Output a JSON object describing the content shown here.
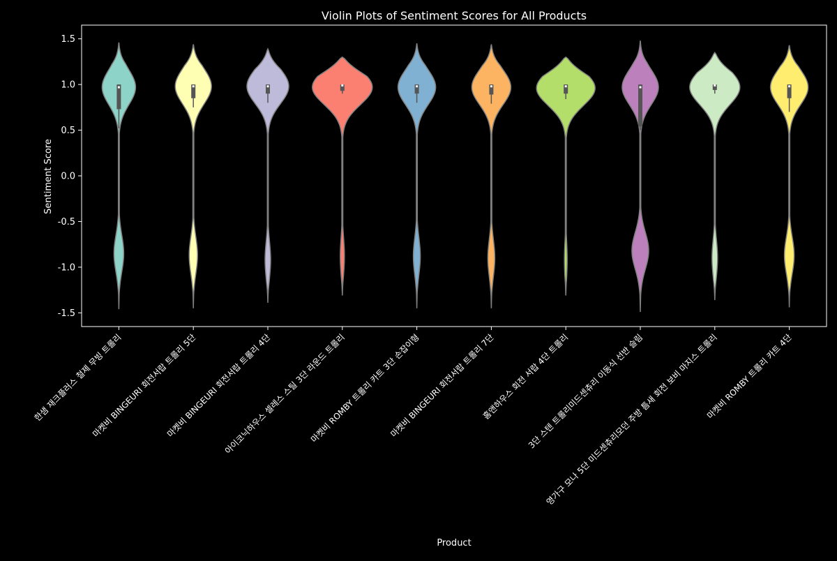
{
  "chart_data": {
    "type": "violin",
    "title": "Violin Plots of Sentiment Scores for All Products",
    "xlabel": "Product",
    "ylabel": "Sentiment Score",
    "ylim": [
      -1.65,
      1.65
    ],
    "yticks": [
      1.5,
      1.0,
      0.5,
      0.0,
      -0.5,
      -1.0,
      -1.5
    ],
    "ytick_labels": [
      "1.5",
      "1.0",
      "0.5",
      "0.0",
      "-0.5",
      "-1.0",
      "-1.5"
    ],
    "grid": false,
    "background": "#000000",
    "foreground": "#ffffff",
    "violin_edge_color": "#808080",
    "box_color": "#555555",
    "median_color": "#ffffff",
    "categories": [
      "한샘 재크플러스 철제 무빙 트롤리",
      "마켓비 BINGEURI 회전서랍 트롤리 5단",
      "마켓비 BINGEURI 회전서랍 트롤리 4단",
      "아이코닉하우스 셀레스 스틸 3단 라운드 트롤리",
      "마켓비 ROMBY 트롤리 카트 3단 손잡이형",
      "마켓비 BINGEURI 회전서랍 트롤리 7단",
      "홈앤하우스 회전 서랍 4단 트롤리",
      "3단 스텐 트롤리미드센츄리 이동식 선반 슬림",
      "영가구 모나 5단 미드센츄리모던 주방 틈새 회전 보비 마지스 트롤리",
      "마켓비 ROMBY 트롤리 카트 4단"
    ],
    "series": [
      {
        "color": "#8dd3c7",
        "min": -1.46,
        "max": 1.46,
        "q1": 0.73,
        "median": 0.97,
        "q3": 1.0,
        "whisker_low": 0.52,
        "whisker_high": 1.0,
        "upper_halfwidth": 24,
        "upper_center": 0.97,
        "lower_halfwidth": 7,
        "lower_center": -0.85
      },
      {
        "color": "#ffffb3",
        "min": -1.45,
        "max": 1.44,
        "q1": 0.85,
        "median": 0.98,
        "q3": 1.0,
        "whisker_low": 0.75,
        "whisker_high": 1.0,
        "upper_halfwidth": 26,
        "upper_center": 0.98,
        "lower_halfwidth": 6,
        "lower_center": -0.87
      },
      {
        "color": "#bebada",
        "min": -1.39,
        "max": 1.39,
        "q1": 0.9,
        "median": 0.98,
        "q3": 1.0,
        "whisker_low": 0.8,
        "whisker_high": 1.0,
        "upper_halfwidth": 30,
        "upper_center": 0.98,
        "lower_halfwidth": 4,
        "lower_center": -0.92
      },
      {
        "color": "#fb8072",
        "min": -1.31,
        "max": 1.3,
        "q1": 0.93,
        "median": 0.99,
        "q3": 1.0,
        "whisker_low": 0.9,
        "whisker_high": 1.0,
        "upper_halfwidth": 43,
        "upper_center": 0.97,
        "lower_halfwidth": 3,
        "lower_center": -0.88
      },
      {
        "color": "#80b1d3",
        "min": -1.45,
        "max": 1.45,
        "q1": 0.9,
        "median": 0.98,
        "q3": 1.0,
        "whisker_low": 0.8,
        "whisker_high": 1.0,
        "upper_halfwidth": 27,
        "upper_center": 0.97,
        "lower_halfwidth": 5,
        "lower_center": -0.88
      },
      {
        "color": "#fdb462",
        "min": -1.45,
        "max": 1.44,
        "q1": 0.89,
        "median": 0.98,
        "q3": 1.0,
        "whisker_low": 0.79,
        "whisker_high": 1.0,
        "upper_halfwidth": 28,
        "upper_center": 0.97,
        "lower_halfwidth": 5,
        "lower_center": -0.9
      },
      {
        "color": "#b3de69",
        "min": -1.31,
        "max": 1.3,
        "q1": 0.9,
        "median": 0.98,
        "q3": 1.0,
        "whisker_low": 0.84,
        "whisker_high": 1.0,
        "upper_halfwidth": 42,
        "upper_center": 0.96,
        "lower_halfwidth": 2,
        "lower_center": -0.92
      },
      {
        "color": "#bc80bd",
        "min": -1.49,
        "max": 1.48,
        "q1": 0.54,
        "median": 0.97,
        "q3": 1.0,
        "whisker_low": 0.5,
        "whisker_high": 1.0,
        "upper_halfwidth": 26,
        "upper_center": 0.97,
        "lower_halfwidth": 12,
        "lower_center": -0.82
      },
      {
        "color": "#ccebc5",
        "min": -1.36,
        "max": 1.35,
        "q1": 0.94,
        "median": 0.99,
        "q3": 1.0,
        "whisker_low": 0.9,
        "whisker_high": 1.0,
        "upper_halfwidth": 36,
        "upper_center": 0.97,
        "lower_halfwidth": 4,
        "lower_center": -0.9
      },
      {
        "color": "#ffed6f",
        "min": -1.44,
        "max": 1.43,
        "q1": 0.85,
        "median": 0.98,
        "q3": 1.0,
        "whisker_low": 0.7,
        "whisker_high": 1.0,
        "upper_halfwidth": 27,
        "upper_center": 0.97,
        "lower_halfwidth": 7,
        "lower_center": -0.87
      }
    ]
  }
}
